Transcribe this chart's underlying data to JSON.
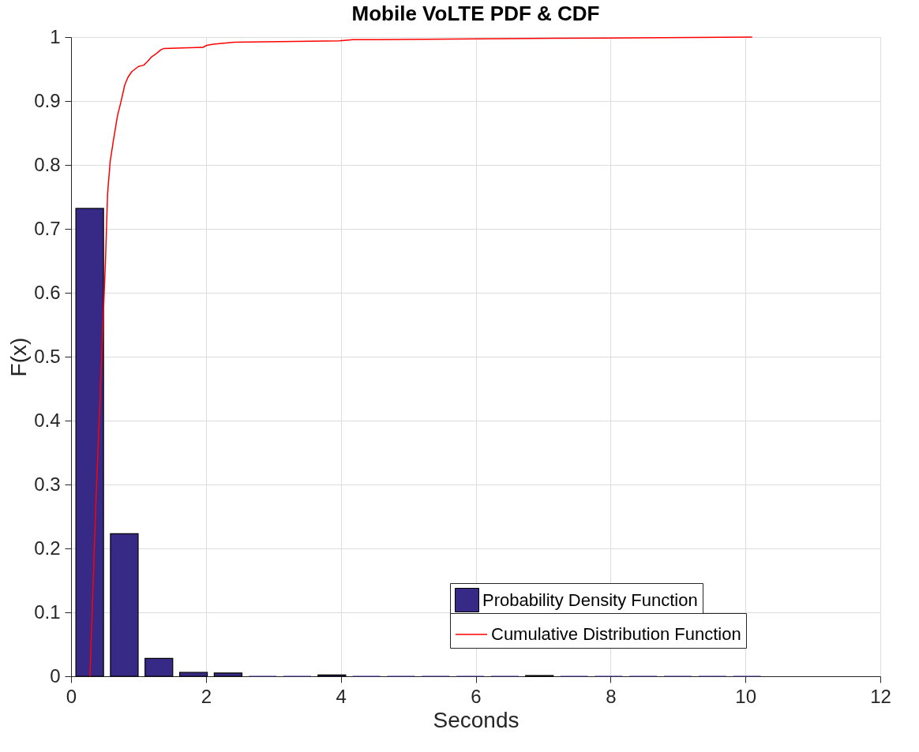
{
  "chart_data": {
    "type": "histogram",
    "title": "Mobile VoLTE PDF & CDF",
    "xlabel": "Seconds",
    "ylabel": "F(x)",
    "bins": [
      0.02,
      0.533,
      1.046,
      1.559,
      2.072,
      2.585,
      3.098,
      3.611,
      4.124,
      4.637,
      5.15,
      5.663,
      6.176,
      6.689,
      7.202,
      7.715,
      8.228,
      8.741,
      9.254,
      9.767,
      10.28
    ],
    "series": [
      {
        "name": "Probability Density Function",
        "color": "#362a86",
        "values": [
          0.732,
          0.223,
          0.028,
          0.006,
          0.005,
          0,
          0,
          0.002,
          0,
          0,
          0,
          0,
          0,
          0.001,
          0,
          0,
          0,
          0,
          0,
          0
        ]
      },
      {
        "type": "line",
        "name": "Cumulative Distribution Function",
        "color": "#ff0000",
        "x": [
          0.28,
          0.367,
          0.51,
          0.542,
          0.581,
          0.629,
          0.687,
          0.745,
          0.796,
          0.843,
          0.901,
          0.999,
          1.077,
          1.136,
          1.194,
          1.261,
          1.331,
          1.37,
          1.955,
          2.01,
          2.11,
          2.42,
          3.98,
          4.18,
          4.53,
          7.15,
          10.1
        ],
        "values": [
          0,
          0.267,
          0.649,
          0.756,
          0.806,
          0.839,
          0.876,
          0.901,
          0.925,
          0.937,
          0.946,
          0.954,
          0.956,
          0.962,
          0.969,
          0.974,
          0.98,
          0.982,
          0.984,
          0.987,
          0.989,
          0.992,
          0.994,
          0.996,
          0.996,
          0.998,
          1
        ]
      }
    ],
    "xlim": [
      0,
      12
    ],
    "xticks": [
      0,
      2,
      4,
      6,
      8,
      10,
      12
    ],
    "ylim": [
      0,
      1
    ],
    "yticks": [
      0,
      0.1,
      0.2,
      0.3,
      0.4,
      0.5,
      0.6,
      0.7,
      0.8,
      0.9,
      1
    ],
    "grid": true,
    "legend": "bottom right"
  }
}
